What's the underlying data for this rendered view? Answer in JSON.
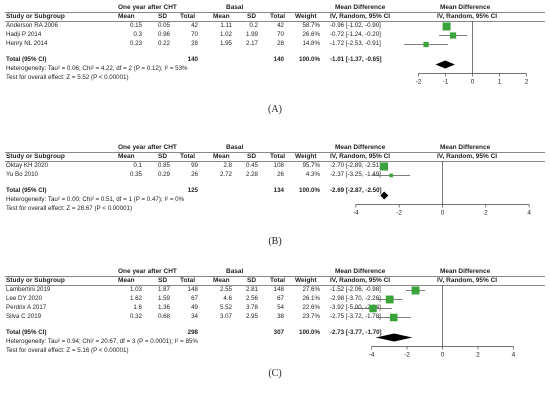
{
  "panels": [
    {
      "caption": "(A)",
      "group1": "One year after CHT",
      "group2": "Basal",
      "col_headers": {
        "study": "Study or Subgroup",
        "mean1": "Mean",
        "sd1": "SD",
        "total1": "Total",
        "mean2": "Mean",
        "sd2": "SD",
        "total2": "Total",
        "weight": "Weight",
        "md": "Mean Difference",
        "md_sub": "IV, Random, 95% CI",
        "plot_title": "Mean Difference",
        "plot_sub": "IV, Random, 95% CI"
      },
      "rows": [
        {
          "study": "Anderson RA 2006",
          "mean1": "0.15",
          "sd1": "0.05",
          "total1": "42",
          "mean2": "1.11",
          "sd2": "0.2",
          "total2": "42",
          "weight": "58.7%",
          "ci": "-0.96 [-1.02, -0.90]"
        },
        {
          "study": "Hadji P 2014",
          "mean1": "0.3",
          "sd1": "0.96",
          "total1": "70",
          "mean2": "1.02",
          "sd2": "1.99",
          "total2": "70",
          "weight": "26.6%",
          "ci": "-0.72 [-1.24, -0.20]"
        },
        {
          "study": "Henry NL 2014",
          "mean1": "0.23",
          "sd1": "0.22",
          "total1": "28",
          "mean2": "1.95",
          "sd2": "2.17",
          "total2": "28",
          "weight": "14.8%",
          "ci": "-1.72 [-2.53, -0.91]"
        }
      ],
      "total": {
        "label": "Total (95% CI)",
        "total1": "140",
        "total2": "140",
        "weight": "100.0%",
        "ci": "-1.01 [-1.37, -0.65]"
      },
      "heterogeneity": "Heterogeneity: Tau² = 0.06; Chi² = 4.22, df = 2 (P = 0.12); I² = 53%",
      "overall": "Test for overall effect: Z = 5.52 (P < 0.00001)",
      "axis_ticks": [
        "-2",
        "-1",
        "0",
        "1",
        "2"
      ]
    },
    {
      "caption": "(B)",
      "group1": "One year after CHT",
      "group2": "Basal",
      "col_headers": {
        "study": "Study or Subgroup",
        "mean1": "Mean",
        "sd1": "SD",
        "total1": "Total",
        "mean2": "Mean",
        "sd2": "SD",
        "total2": "Total",
        "weight": "Weight",
        "md": "Mean Difference",
        "md_sub": "IV, Random, 95% CI",
        "plot_title": "Mean Difference",
        "plot_sub": "IV, Random, 95% CI"
      },
      "rows": [
        {
          "study": "Oktay KH 2020",
          "mean1": "0.1",
          "sd1": "0.85",
          "total1": "99",
          "mean2": "2.8",
          "sd2": "0.45",
          "total2": "108",
          "weight": "95.7%",
          "ci": "-2.70 [-2.89, -2.51]"
        },
        {
          "study": "Yu Bo 2010",
          "mean1": "0.35",
          "sd1": "0.29",
          "total1": "26",
          "mean2": "2.72",
          "sd2": "2.28",
          "total2": "26",
          "weight": "4.3%",
          "ci": "-2.37 [-3.25, -1.49]"
        }
      ],
      "total": {
        "label": "Total (95% CI)",
        "total1": "125",
        "total2": "134",
        "weight": "100.0%",
        "ci": "-2.69 [-2.87, -2.50]"
      },
      "heterogeneity": "Heterogeneity: Tau² = 0.00; Chi² = 0.51, df = 1 (P = 0.47); I² = 0%",
      "overall": "Test for overall effect: Z = 28.67 (P < 0.00001)",
      "axis_ticks": [
        "-4",
        "-2",
        "0",
        "2",
        "4"
      ]
    },
    {
      "caption": "(C)",
      "group1": "One year after CHT",
      "group2": "Basal",
      "col_headers": {
        "study": "Study or Subgroup",
        "mean1": "Mean",
        "sd1": "SD",
        "total1": "Total",
        "mean2": "Mean",
        "sd2": "SD",
        "total2": "Total",
        "weight": "Weight",
        "md": "Mean Difference",
        "md_sub": "IV, Random, 95% CI",
        "plot_title": "Mean Difference",
        "plot_sub": "IV, Random, 95% CI"
      },
      "rows": [
        {
          "study": "Lambertini 2019",
          "mean1": "1.03",
          "sd1": "1.87",
          "total1": "148",
          "mean2": "2.55",
          "sd2": "2.81",
          "total2": "148",
          "weight": "27.6%",
          "ci": "-1.52 [-2.06, -0.98]"
        },
        {
          "study": "Lee DY 2020",
          "mean1": "1.62",
          "sd1": "1.59",
          "total1": "67",
          "mean2": "4.6",
          "sd2": "2.56",
          "total2": "67",
          "weight": "26.1%",
          "ci": "-2.98 [-3.70, -2.26]"
        },
        {
          "study": "Perdrix A 2017",
          "mean1": "1.6",
          "sd1": "1.36",
          "total1": "49",
          "mean2": "5.52",
          "sd2": "3.78",
          "total2": "54",
          "weight": "22.6%",
          "ci": "-3.92 [-5.00, -2.84]"
        },
        {
          "study": "Silva C 2019",
          "mean1": "0.32",
          "sd1": "0.68",
          "total1": "34",
          "mean2": "3.07",
          "sd2": "2.95",
          "total2": "38",
          "weight": "23.7%",
          "ci": "-2.75 [-3.72, -1.78]"
        }
      ],
      "total": {
        "label": "Total (95% CI)",
        "total1": "298",
        "total2": "307",
        "weight": "100.0%",
        "ci": "-2.73 [-3.77, -1.70]"
      },
      "heterogeneity": "Heterogeneity: Tau² = 0.94; Chi² = 20.67, df = 3 (P = 0.0001); I² = 85%",
      "overall": "Test for overall effect: Z = 5.16 (P < 0.00001)",
      "axis_ticks": [
        "-4",
        "-2",
        "0",
        "2",
        "4"
      ]
    }
  ],
  "colors": {
    "study_box": "#3aa33a",
    "diamond": "#000000",
    "line": "#555555"
  },
  "chart_data": [
    {
      "type": "forest",
      "title": "",
      "xlim": [
        -2.5,
        2.5
      ],
      "ticks": [
        -2,
        -1,
        0,
        1,
        2
      ],
      "studies": [
        {
          "name": "Anderson RA 2006",
          "md": -0.96,
          "lo": -1.02,
          "hi": -0.9,
          "weight": 58.7
        },
        {
          "name": "Hadji P 2014",
          "md": -0.72,
          "lo": -1.24,
          "hi": -0.2,
          "weight": 26.6
        },
        {
          "name": "Henry NL 2014",
          "md": -1.72,
          "lo": -2.53,
          "hi": -0.91,
          "weight": 14.8
        }
      ],
      "pooled": {
        "md": -1.01,
        "lo": -1.37,
        "hi": -0.65
      }
    },
    {
      "type": "forest",
      "title": "",
      "xlim": [
        -4.5,
        4.5
      ],
      "ticks": [
        -4,
        -2,
        0,
        2,
        4
      ],
      "studies": [
        {
          "name": "Oktay KH 2020",
          "md": -2.7,
          "lo": -2.89,
          "hi": -2.51,
          "weight": 95.7
        },
        {
          "name": "Yu Bo 2010",
          "md": -2.37,
          "lo": -3.25,
          "hi": -1.49,
          "weight": 4.3
        }
      ],
      "pooled": {
        "md": -2.69,
        "lo": -2.87,
        "hi": -2.5
      }
    },
    {
      "type": "forest",
      "title": "",
      "xlim": [
        -5.5,
        5.5
      ],
      "ticks": [
        -4,
        -2,
        0,
        2,
        4
      ],
      "studies": [
        {
          "name": "Lambertini 2019",
          "md": -1.52,
          "lo": -2.06,
          "hi": -0.98,
          "weight": 27.6
        },
        {
          "name": "Lee DY 2020",
          "md": -2.98,
          "lo": -3.7,
          "hi": -2.26,
          "weight": 26.1
        },
        {
          "name": "Perdrix A 2017",
          "md": -3.92,
          "lo": -5.0,
          "hi": -2.84,
          "weight": 22.6
        },
        {
          "name": "Silva C 2019",
          "md": -2.75,
          "lo": -3.72,
          "hi": -1.78,
          "weight": 23.7
        }
      ],
      "pooled": {
        "md": -2.73,
        "lo": -3.77,
        "hi": -1.7
      }
    }
  ]
}
